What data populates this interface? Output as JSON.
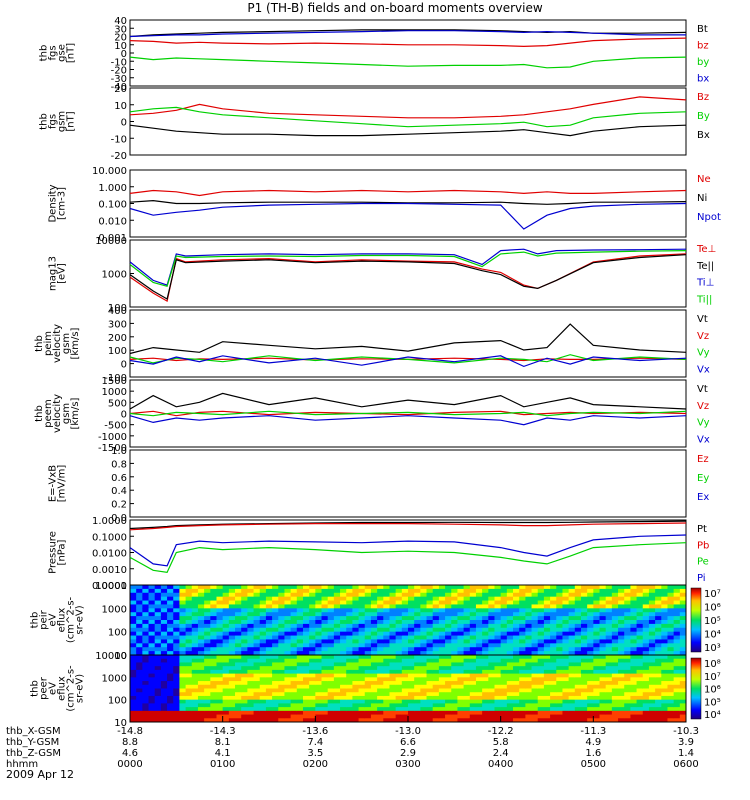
{
  "title": "P1 (TH-B) fields and on-board moments overview",
  "date": "2009 Apr 12",
  "footer": {
    "rows": [
      {
        "label": "thb_X-GSM",
        "values": [
          "-14.8",
          "-14.3",
          "-13.6",
          "-13.0",
          "-12.2",
          "-11.3",
          "-10.3"
        ]
      },
      {
        "label": "thb_Y-GSM",
        "values": [
          "8.8",
          "8.1",
          "7.4",
          "6.6",
          "5.8",
          "4.9",
          "3.9"
        ]
      },
      {
        "label": "thb_Z-GSM",
        "values": [
          "4.6",
          "4.1",
          "3.5",
          "2.9",
          "2.4",
          "1.6",
          "1.4"
        ]
      },
      {
        "label": "hhmm",
        "values": [
          "0000",
          "0100",
          "0200",
          "0300",
          "0400",
          "0500",
          "0600"
        ]
      }
    ]
  },
  "colors": {
    "black": "#000000",
    "red": "#e00000",
    "green": "#00d000",
    "blue": "#0000d0"
  },
  "chart_data": [
    {
      "type": "line",
      "ylabel": [
        "thb",
        "fgs",
        "gse",
        "[nT]"
      ],
      "ylim": [
        -40,
        40
      ],
      "yticks": [
        "40",
        "30",
        "20",
        "10",
        "0",
        "-10",
        "-20",
        "-30",
        "-40"
      ],
      "legend": [
        {
          "label": "Bt",
          "color": "#000000"
        },
        {
          "label": "bz",
          "color": "#e00000"
        },
        {
          "label": "by",
          "color": "#00d000"
        },
        {
          "label": "bx",
          "color": "#0000d0"
        }
      ],
      "x": [
        0,
        0.25,
        0.5,
        0.75,
        1,
        1.5,
        2,
        2.5,
        3,
        3.5,
        4,
        4.25,
        4.5,
        4.75,
        5,
        5.5,
        6
      ],
      "series": [
        {
          "name": "Bt",
          "color": "#000000",
          "values": [
            20,
            22,
            23,
            24,
            25,
            26,
            27,
            28,
            28,
            28,
            27,
            26,
            25,
            26,
            24,
            24,
            25
          ]
        },
        {
          "name": "bz",
          "color": "#e00000",
          "values": [
            15,
            14,
            12,
            13,
            12,
            11,
            12,
            11,
            10,
            10,
            9,
            8,
            9,
            12,
            15,
            17,
            18
          ]
        },
        {
          "name": "by",
          "color": "#00d000",
          "values": [
            -5,
            -8,
            -6,
            -7,
            -8,
            -10,
            -12,
            -14,
            -16,
            -15,
            -15,
            -14,
            -18,
            -17,
            -10,
            -6,
            -5
          ]
        },
        {
          "name": "bx",
          "color": "#0000d0",
          "values": [
            20,
            21,
            22,
            22,
            23,
            24,
            25,
            26,
            27,
            27,
            26,
            25,
            26,
            25,
            24,
            22,
            22
          ]
        }
      ]
    },
    {
      "type": "line",
      "ylabel": [
        "thb",
        "fgs",
        "gsm",
        "[nT]"
      ],
      "ylim": [
        -25,
        20
      ],
      "yticks": [
        "20",
        "10",
        "0",
        "-10",
        "-20"
      ],
      "legend": [
        {
          "label": "Bz",
          "color": "#e00000"
        },
        {
          "label": "By",
          "color": "#00d000"
        },
        {
          "label": "Bx",
          "color": "#000000"
        }
      ],
      "x": [
        0,
        0.25,
        0.5,
        0.75,
        1,
        1.5,
        2,
        2.5,
        3,
        3.5,
        4,
        4.25,
        4.5,
        4.75,
        5,
        5.5,
        6
      ],
      "series": [
        {
          "name": "Bz",
          "color": "#e00000",
          "values": [
            2,
            3,
            5,
            9,
            6,
            3,
            2,
            1,
            0,
            0,
            1,
            2,
            4,
            6,
            9,
            14,
            12
          ]
        },
        {
          "name": "By",
          "color": "#00d000",
          "values": [
            4,
            6,
            7,
            4,
            2,
            0,
            -2,
            -4,
            -6,
            -5,
            -4,
            -3,
            -6,
            -5,
            0,
            3,
            4
          ]
        },
        {
          "name": "Bx",
          "color": "#000000",
          "values": [
            -5,
            -7,
            -9,
            -10,
            -11,
            -11,
            -12,
            -12,
            -11,
            -10,
            -9,
            -8,
            -10,
            -12,
            -9,
            -6,
            -5
          ]
        }
      ]
    },
    {
      "type": "line",
      "log": true,
      "ylabel": [
        "Density",
        "[cm-3]"
      ],
      "ylim": [
        0.001,
        10
      ],
      "yticks": [
        "10.000",
        "1.000",
        "0.100",
        "0.010",
        "0.001"
      ],
      "legend": [
        {
          "label": "Ne",
          "color": "#e00000"
        },
        {
          "label": "Ni",
          "color": "#000000"
        },
        {
          "label": "Npot",
          "color": "#0000d0"
        }
      ],
      "x": [
        0,
        0.25,
        0.5,
        0.75,
        1,
        1.5,
        2,
        2.5,
        3,
        3.5,
        4,
        4.25,
        4.5,
        4.75,
        5,
        5.5,
        6
      ],
      "series": [
        {
          "name": "Ne",
          "color": "#e00000",
          "values": [
            0.4,
            0.6,
            0.5,
            0.3,
            0.5,
            0.6,
            0.5,
            0.6,
            0.5,
            0.6,
            0.5,
            0.4,
            0.5,
            0.4,
            0.4,
            0.5,
            0.6
          ]
        },
        {
          "name": "Ni",
          "color": "#000000",
          "values": [
            0.12,
            0.15,
            0.1,
            0.1,
            0.11,
            0.12,
            0.12,
            0.12,
            0.11,
            0.11,
            0.12,
            0.1,
            0.09,
            0.1,
            0.12,
            0.12,
            0.13
          ]
        },
        {
          "name": "Npot",
          "color": "#0000d0",
          "values": [
            0.05,
            0.02,
            0.03,
            0.04,
            0.06,
            0.08,
            0.09,
            0.1,
            0.1,
            0.09,
            0.08,
            0.003,
            0.02,
            0.05,
            0.07,
            0.09,
            0.1
          ]
        }
      ]
    },
    {
      "type": "line",
      "log": true,
      "ylabel": [
        "mag13",
        "[eV]"
      ],
      "ylim": [
        30,
        10000
      ],
      "yticks": [
        "10000",
        "1000",
        "100"
      ],
      "legend": [
        {
          "label": "Te⊥",
          "color": "#e00000"
        },
        {
          "label": "Te||",
          "color": "#000000"
        },
        {
          "label": "Ti⊥",
          "color": "#0000d0"
        },
        {
          "label": "Ti||",
          "color": "#00d000"
        }
      ],
      "x": [
        0,
        0.25,
        0.4,
        0.5,
        0.6,
        1,
        1.5,
        2,
        2.5,
        3,
        3.5,
        3.8,
        4,
        4.25,
        4.4,
        4.6,
        5,
        5.5,
        6
      ],
      "series": [
        {
          "name": "Te⊥",
          "color": "#e00000",
          "values": [
            400,
            100,
            50,
            2000,
            1500,
            1800,
            2000,
            1500,
            1800,
            1600,
            1500,
            800,
            600,
            200,
            150,
            300,
            1500,
            2500,
            3000
          ]
        },
        {
          "name": "Te||",
          "color": "#000000",
          "values": [
            500,
            120,
            60,
            1800,
            1400,
            1600,
            1800,
            1400,
            1600,
            1500,
            1300,
            700,
            500,
            180,
            150,
            300,
            1400,
            2200,
            2800
          ]
        },
        {
          "name": "Ti⊥",
          "color": "#0000d0",
          "values": [
            1500,
            300,
            200,
            3000,
            2500,
            2800,
            3000,
            2800,
            3000,
            3000,
            2800,
            1200,
            4000,
            4500,
            3000,
            4000,
            4200,
            4300,
            4500
          ]
        },
        {
          "name": "Ti||",
          "color": "#00d000",
          "values": [
            1200,
            250,
            180,
            2500,
            2200,
            2400,
            2500,
            2400,
            2600,
            2600,
            2400,
            1000,
            3000,
            3500,
            2500,
            3200,
            3500,
            3800,
            4000
          ]
        }
      ]
    },
    {
      "type": "line",
      "ylabel": [
        "thb",
        "peim",
        "velocity",
        "gsm",
        "[km/s]"
      ],
      "ylim": [
        -150,
        420
      ],
      "yticks": [
        "400",
        "300",
        "200",
        "100",
        "0",
        "-100"
      ],
      "legend": [
        {
          "label": "Vt",
          "color": "#000000"
        },
        {
          "label": "Vz",
          "color": "#e00000"
        },
        {
          "label": "Vy",
          "color": "#00d000"
        },
        {
          "label": "Vx",
          "color": "#0000d0"
        }
      ],
      "x": [
        0,
        0.25,
        0.5,
        0.75,
        1,
        1.5,
        2,
        2.5,
        3,
        3.5,
        4,
        4.25,
        4.5,
        4.75,
        5,
        5.5,
        6
      ],
      "series": [
        {
          "name": "Vt",
          "color": "#000000",
          "values": [
            50,
            100,
            80,
            60,
            150,
            120,
            90,
            110,
            70,
            140,
            160,
            80,
            100,
            300,
            120,
            80,
            60
          ]
        },
        {
          "name": "Vz",
          "color": "#e00000",
          "values": [
            0,
            10,
            -10,
            5,
            0,
            10,
            -5,
            5,
            0,
            10,
            0,
            -10,
            5,
            0,
            0,
            10,
            0
          ]
        },
        {
          "name": "Vy",
          "color": "#00d000",
          "values": [
            20,
            -30,
            10,
            0,
            -20,
            30,
            -10,
            20,
            0,
            -30,
            10,
            0,
            -20,
            40,
            -10,
            20,
            0
          ]
        },
        {
          "name": "Vx",
          "color": "#0000d0",
          "values": [
            -10,
            -40,
            20,
            -20,
            30,
            -30,
            10,
            -50,
            20,
            -20,
            30,
            -60,
            10,
            -40,
            20,
            -10,
            10
          ]
        }
      ]
    },
    {
      "type": "line",
      "ylabel": [
        "thb",
        "peem",
        "velocity",
        "gsm",
        "[km/s]"
      ],
      "ylim": [
        -1500,
        1500
      ],
      "yticks": [
        "1500",
        "1000",
        "500",
        "0",
        "-500",
        "-1000",
        "-1500"
      ],
      "legend": [
        {
          "label": "Vt",
          "color": "#000000"
        },
        {
          "label": "Vz",
          "color": "#e00000"
        },
        {
          "label": "Vy",
          "color": "#00d000"
        },
        {
          "label": "Vx",
          "color": "#0000d0"
        }
      ],
      "x": [
        0,
        0.25,
        0.5,
        0.75,
        1,
        1.5,
        2,
        2.5,
        3,
        3.5,
        4,
        4.25,
        4.5,
        4.75,
        5,
        5.5,
        6
      ],
      "series": [
        {
          "name": "Vt",
          "color": "#000000",
          "values": [
            200,
            800,
            300,
            500,
            900,
            400,
            700,
            300,
            600,
            400,
            800,
            300,
            500,
            700,
            400,
            300,
            200
          ]
        },
        {
          "name": "Vz",
          "color": "#e00000",
          "values": [
            0,
            100,
            -100,
            50,
            100,
            -50,
            50,
            0,
            -50,
            50,
            100,
            -50,
            0,
            50,
            0,
            50,
            0
          ]
        },
        {
          "name": "Vy",
          "color": "#00d000",
          "values": [
            0,
            -100,
            50,
            0,
            -50,
            100,
            -50,
            0,
            50,
            -50,
            0,
            50,
            -100,
            0,
            50,
            0,
            100
          ]
        },
        {
          "name": "Vx",
          "color": "#0000d0",
          "values": [
            -100,
            -400,
            -200,
            -300,
            -200,
            -100,
            -300,
            -200,
            -100,
            -200,
            -300,
            -500,
            -200,
            -300,
            -100,
            -200,
            -100
          ]
        }
      ]
    },
    {
      "type": "line",
      "ylabel": [
        "E=-VxB",
        "[mV/m]"
      ],
      "ylim": [
        0,
        1
      ],
      "yticks": [
        "1.0",
        "0.8",
        "0.6",
        "0.4",
        "0.2",
        "0.0"
      ],
      "legend": [
        {
          "label": "Ez",
          "color": "#e00000"
        },
        {
          "label": "Ey",
          "color": "#00d000"
        },
        {
          "label": "Ex",
          "color": "#0000d0"
        }
      ],
      "x": [],
      "series": []
    },
    {
      "type": "line",
      "log": true,
      "ylabel": [
        "Pressure",
        "[nPa]"
      ],
      "ylim": [
        0.0001,
        1
      ],
      "yticks": [
        "1.0000",
        "0.1000",
        "0.0100",
        "0.0010",
        "0.0001"
      ],
      "legend": [
        {
          "label": "Pt",
          "color": "#000000"
        },
        {
          "label": "Pb",
          "color": "#e00000"
        },
        {
          "label": "Pe",
          "color": "#00d000"
        },
        {
          "label": "Pi",
          "color": "#0000d0"
        }
      ],
      "x": [
        0,
        0.25,
        0.4,
        0.5,
        0.75,
        1,
        1.5,
        2,
        2.5,
        3,
        3.5,
        4,
        4.25,
        4.5,
        4.75,
        5,
        5.5,
        6
      ],
      "series": [
        {
          "name": "Pt",
          "color": "#000000",
          "values": [
            0.3,
            0.35,
            0.4,
            0.45,
            0.5,
            0.55,
            0.6,
            0.65,
            0.7,
            0.7,
            0.72,
            0.7,
            0.7,
            0.7,
            0.72,
            0.75,
            0.8,
            0.85
          ]
        },
        {
          "name": "Pb",
          "color": "#e00000",
          "values": [
            0.25,
            0.3,
            0.35,
            0.4,
            0.45,
            0.5,
            0.55,
            0.6,
            0.6,
            0.6,
            0.55,
            0.5,
            0.45,
            0.45,
            0.5,
            0.55,
            0.6,
            0.65
          ]
        },
        {
          "name": "Pe",
          "color": "#00d000",
          "values": [
            0.005,
            0.0008,
            0.0006,
            0.01,
            0.02,
            0.015,
            0.02,
            0.015,
            0.01,
            0.012,
            0.01,
            0.005,
            0.003,
            0.002,
            0.006,
            0.02,
            0.03,
            0.04
          ]
        },
        {
          "name": "Pi",
          "color": "#0000d0",
          "values": [
            0.02,
            0.002,
            0.0015,
            0.03,
            0.05,
            0.04,
            0.05,
            0.045,
            0.04,
            0.05,
            0.045,
            0.02,
            0.01,
            0.006,
            0.02,
            0.06,
            0.1,
            0.12
          ]
        }
      ]
    },
    {
      "type": "heatmap",
      "ylabel": [
        "thb",
        "peir",
        "eV",
        "eflux",
        "(cm^2-s-",
        "sr-eV)"
      ],
      "yticks": [
        "10000",
        "1000",
        "100",
        "10"
      ],
      "colorbar_ticks": [
        "10⁷",
        "10⁶",
        "10⁵",
        "10⁴",
        "10³"
      ]
    },
    {
      "type": "heatmap",
      "ylabel": [
        "thb",
        "peer",
        "eV",
        "eflux",
        "(cm^2-s-",
        "sr-eV)"
      ],
      "yticks": [
        "10000",
        "1000",
        "100",
        "10"
      ],
      "colorbar_ticks": [
        "10⁸",
        "10⁷",
        "10⁶",
        "10⁵",
        "10⁴"
      ]
    }
  ]
}
